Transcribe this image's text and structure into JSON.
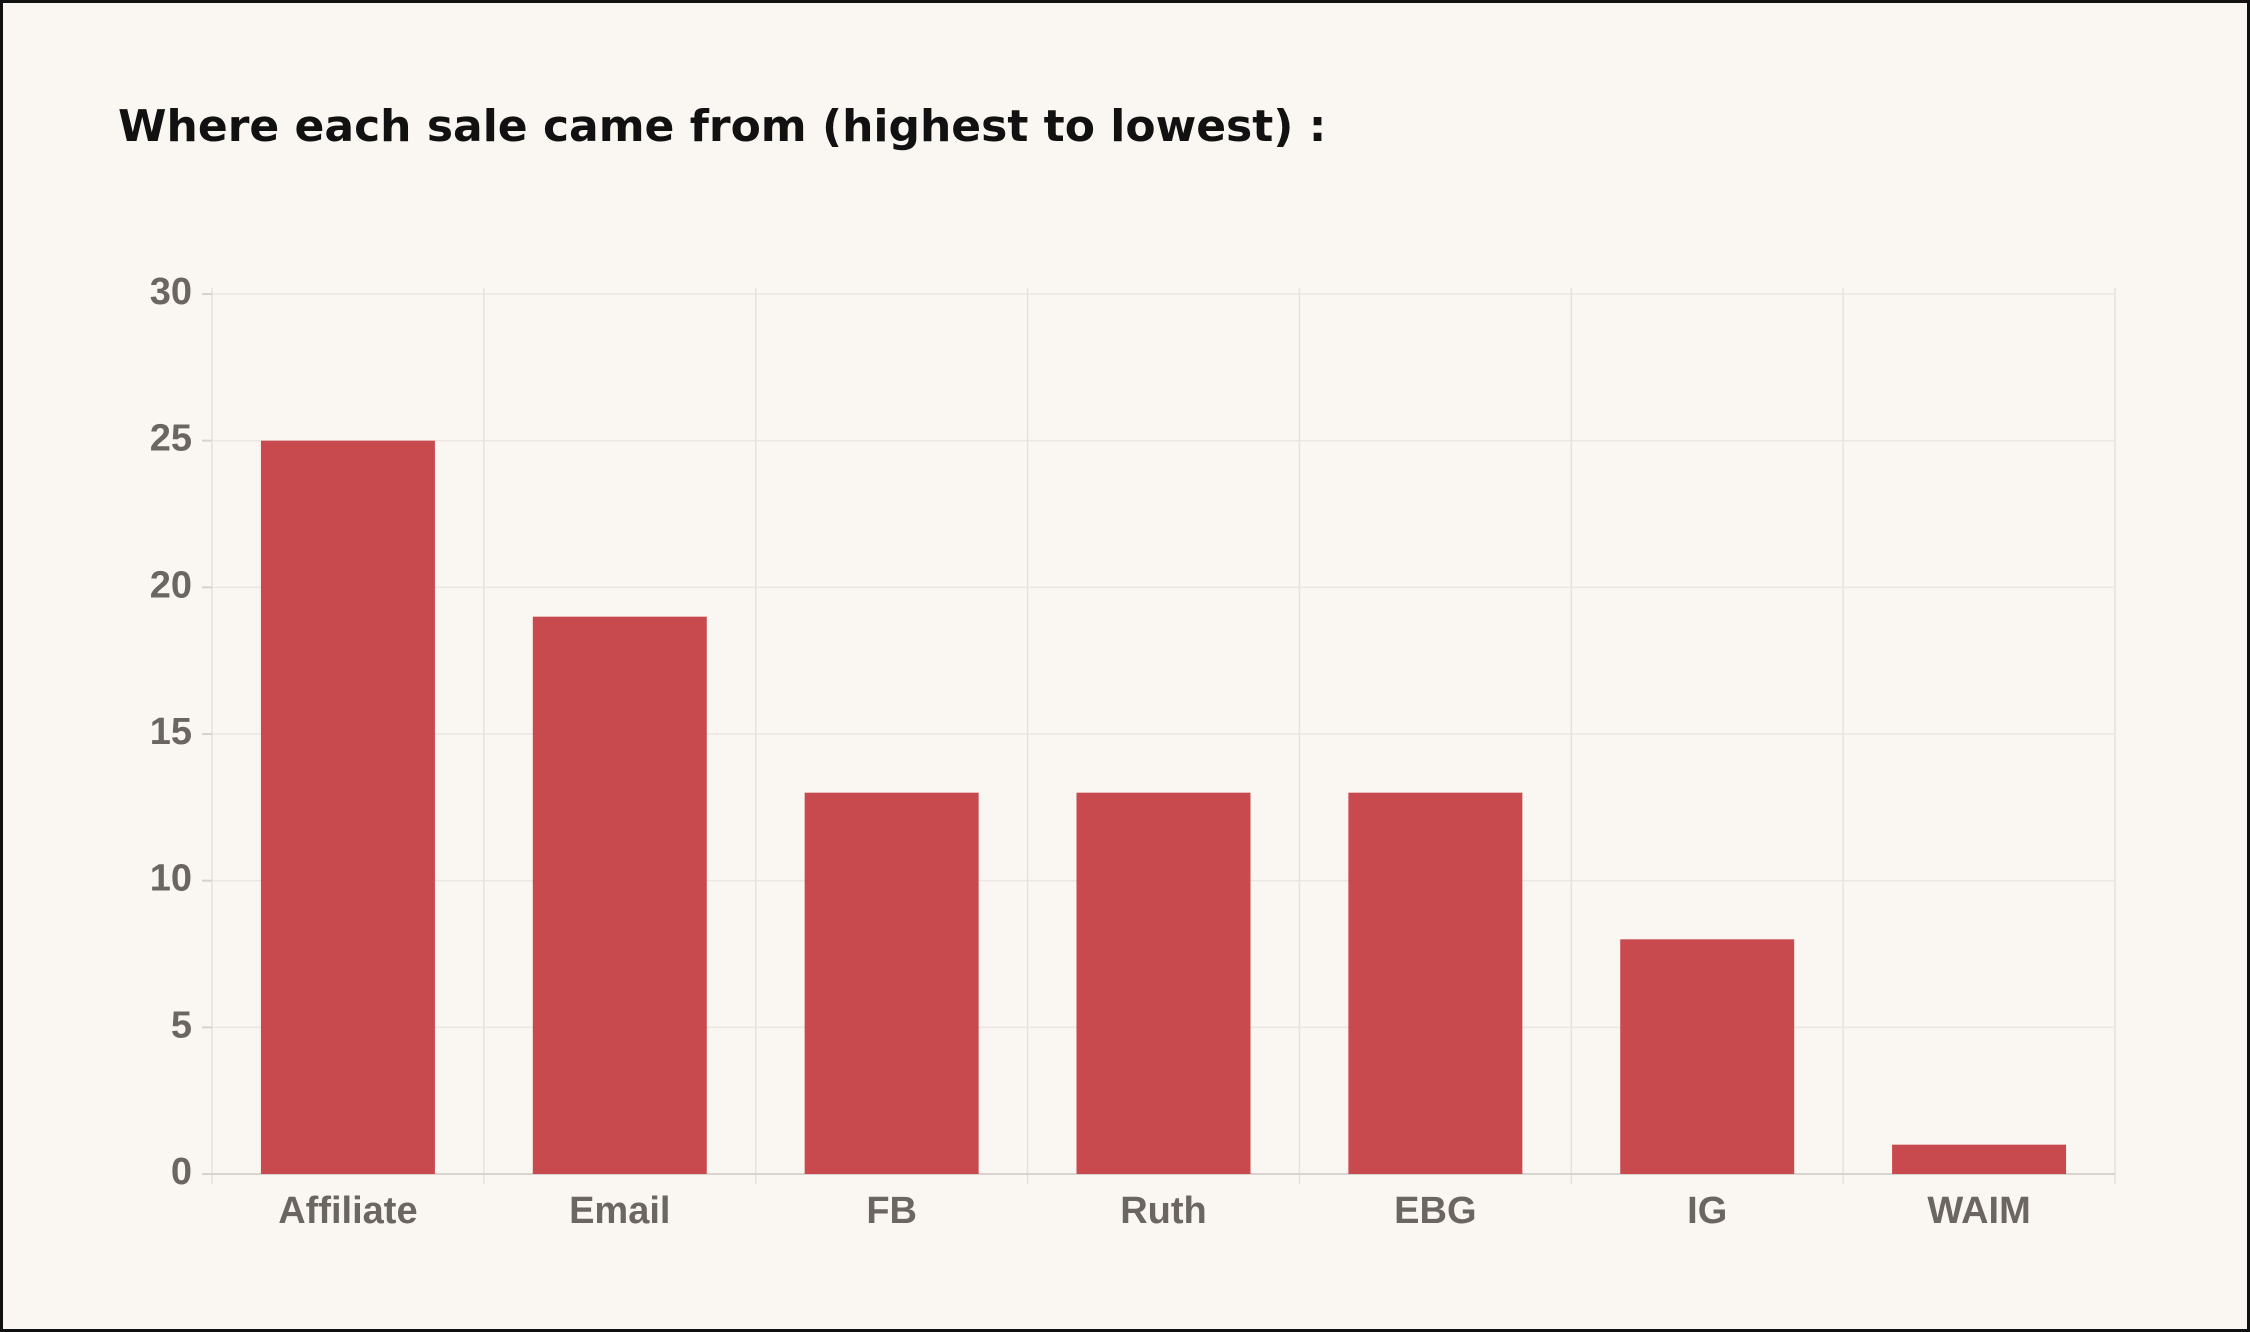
{
  "chart_data": {
    "type": "bar",
    "title": "Where each sale came from (highest to lowest) :",
    "categories": [
      "Affiliate",
      "Email",
      "FB",
      "Ruth",
      "EBG",
      "IG",
      "WAIM"
    ],
    "values": [
      25,
      19,
      13,
      13,
      13,
      8,
      1
    ],
    "color": "#c84a4f",
    "ylim": [
      0,
      30
    ],
    "yticks": [
      0,
      5,
      10,
      15,
      20,
      25,
      30
    ],
    "grid": true
  }
}
